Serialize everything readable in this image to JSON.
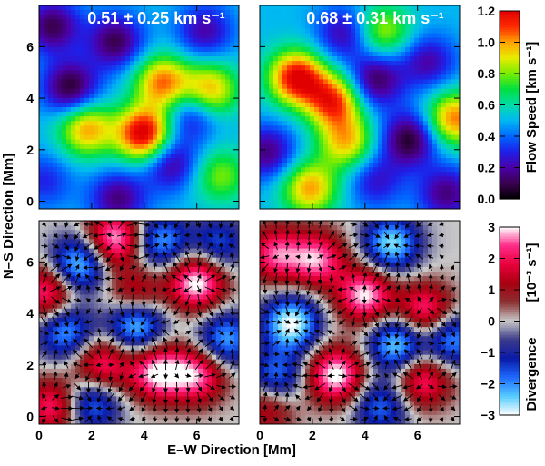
{
  "chart_data": {
    "type": "heatmap",
    "xlabel": "E–W Direction   [Mm]",
    "ylabel": "N–S Direction   [Mm]",
    "x_ticks": [
      "0",
      "2",
      "4",
      "6"
    ],
    "y_ticks": [
      "0",
      "2",
      "4",
      "6"
    ],
    "xlim": [
      0,
      7.6
    ],
    "ylim": [
      -0.3,
      7.6
    ],
    "panels": [
      {
        "id": "top-left",
        "quantity": "flow speed",
        "annotation": "0.51 ± 0.25 km s⁻¹",
        "blobs": [
          {
            "x": 4.0,
            "y": 2.6,
            "v": 0.75
          },
          {
            "x": 4.7,
            "y": 4.6,
            "v": 0.55
          },
          {
            "x": 6.5,
            "y": 4.3,
            "v": 0.5
          },
          {
            "x": 1.8,
            "y": 2.8,
            "v": 0.5
          },
          {
            "x": 6.9,
            "y": 1.0,
            "v": 0.3
          },
          {
            "x": 0.5,
            "y": 6.8,
            "v": -0.4
          },
          {
            "x": 1.2,
            "y": 4.4,
            "v": -0.45
          },
          {
            "x": 2.9,
            "y": 6.2,
            "v": -0.4
          },
          {
            "x": 5.0,
            "y": 1.5,
            "v": -0.35
          },
          {
            "x": 6.3,
            "y": 6.6,
            "v": -0.3
          },
          {
            "x": 3.0,
            "y": 0.1,
            "v": -0.35
          },
          {
            "x": 5.8,
            "y": 3.4,
            "v": -0.3
          },
          {
            "x": 0.2,
            "y": 0.8,
            "v": -0.2
          }
        ]
      },
      {
        "id": "top-right",
        "quantity": "flow speed",
        "annotation": "0.68 ± 0.31 km s⁻¹",
        "blobs": [
          {
            "x": 1.4,
            "y": 4.8,
            "v": 0.7
          },
          {
            "x": 2.8,
            "y": 3.9,
            "v": 0.6
          },
          {
            "x": 3.3,
            "y": 2.3,
            "v": 0.45
          },
          {
            "x": 1.9,
            "y": 0.5,
            "v": 0.5
          },
          {
            "x": 7.4,
            "y": 3.2,
            "v": 0.55
          },
          {
            "x": 4.7,
            "y": 6.6,
            "v": 0.35
          },
          {
            "x": 0.3,
            "y": 1.9,
            "v": -0.35
          },
          {
            "x": 3.2,
            "y": 6.5,
            "v": -0.3
          },
          {
            "x": 4.4,
            "y": 4.7,
            "v": -0.4
          },
          {
            "x": 5.7,
            "y": 2.4,
            "v": -0.45
          },
          {
            "x": 6.4,
            "y": 5.4,
            "v": -0.3
          },
          {
            "x": 7.1,
            "y": 0.3,
            "v": -0.35
          },
          {
            "x": 4.4,
            "y": 0.8,
            "v": -0.25
          }
        ]
      },
      {
        "id": "bottom-left",
        "quantity": "divergence",
        "blobs": [
          {
            "x": 2.9,
            "y": 6.9,
            "v": 3.0
          },
          {
            "x": 6.0,
            "y": 5.2,
            "v": 3.2
          },
          {
            "x": 4.5,
            "y": 1.7,
            "v": 3.0
          },
          {
            "x": 6.0,
            "y": 1.6,
            "v": 2.6
          },
          {
            "x": 0.3,
            "y": 4.8,
            "v": 2.4
          },
          {
            "x": 3.7,
            "y": 4.7,
            "v": 1.8
          },
          {
            "x": 2.4,
            "y": 2.0,
            "v": 2.2
          },
          {
            "x": 0.5,
            "y": 0.4,
            "v": 2.2
          },
          {
            "x": 1.5,
            "y": 5.9,
            "v": -2.6
          },
          {
            "x": 4.6,
            "y": 6.8,
            "v": -2.2
          },
          {
            "x": 3.7,
            "y": 3.6,
            "v": -2.8
          },
          {
            "x": 1.0,
            "y": 3.3,
            "v": -2.2
          },
          {
            "x": 7.1,
            "y": 3.0,
            "v": -2.2
          },
          {
            "x": 2.0,
            "y": 0.5,
            "v": -2.0
          },
          {
            "x": 6.8,
            "y": 6.7,
            "v": -1.6
          }
        ]
      },
      {
        "id": "bottom-right",
        "quantity": "divergence",
        "blobs": [
          {
            "x": 0.6,
            "y": 6.3,
            "v": 2.4
          },
          {
            "x": 2.2,
            "y": 6.1,
            "v": 2.6
          },
          {
            "x": 4.0,
            "y": 4.7,
            "v": 3.0
          },
          {
            "x": 2.9,
            "y": 1.6,
            "v": 3.2
          },
          {
            "x": 6.3,
            "y": 4.1,
            "v": 2.4
          },
          {
            "x": 6.2,
            "y": 1.4,
            "v": 2.2
          },
          {
            "x": 0.3,
            "y": 0.4,
            "v": 1.6
          },
          {
            "x": 1.2,
            "y": 3.6,
            "v": -3.0
          },
          {
            "x": 5.0,
            "y": 6.7,
            "v": -2.6
          },
          {
            "x": 5.2,
            "y": 2.8,
            "v": -2.6
          },
          {
            "x": 7.3,
            "y": 3.0,
            "v": -2.2
          },
          {
            "x": 0.6,
            "y": 1.5,
            "v": -2.0
          },
          {
            "x": 4.6,
            "y": 0.4,
            "v": -1.8
          }
        ]
      }
    ],
    "colorbars": [
      {
        "id": "speed-colorbar",
        "title": "Flow Speed   [km s⁻¹]",
        "range": [
          0.0,
          1.2
        ],
        "ticks": [
          "0.0",
          "0.2",
          "0.4",
          "0.6",
          "0.8",
          "1.0",
          "1.2"
        ],
        "palette": [
          "#000000",
          "#3a0050",
          "#4b00a8",
          "#1f1fe8",
          "#0066ff",
          "#00b8f2",
          "#00dca8",
          "#00e040",
          "#7aec00",
          "#e8ec00",
          "#ffa200",
          "#ff2a00",
          "#e00000"
        ]
      },
      {
        "id": "divergence-colorbar",
        "title_part1": "Divergence",
        "title_part2": "[10⁻³ s⁻¹]",
        "range": [
          -3,
          3
        ],
        "ticks": [
          "3",
          "2",
          "1",
          "0",
          "−1",
          "−2",
          "−3"
        ],
        "palette": [
          "#ffffff",
          "#55ccff",
          "#1e6aff",
          "#0a1aa8",
          "#3a3a8a",
          "#c8c8c8",
          "#8a3030",
          "#a80010",
          "#e8003a",
          "#ff2a88",
          "#ffffff"
        ]
      }
    ]
  }
}
